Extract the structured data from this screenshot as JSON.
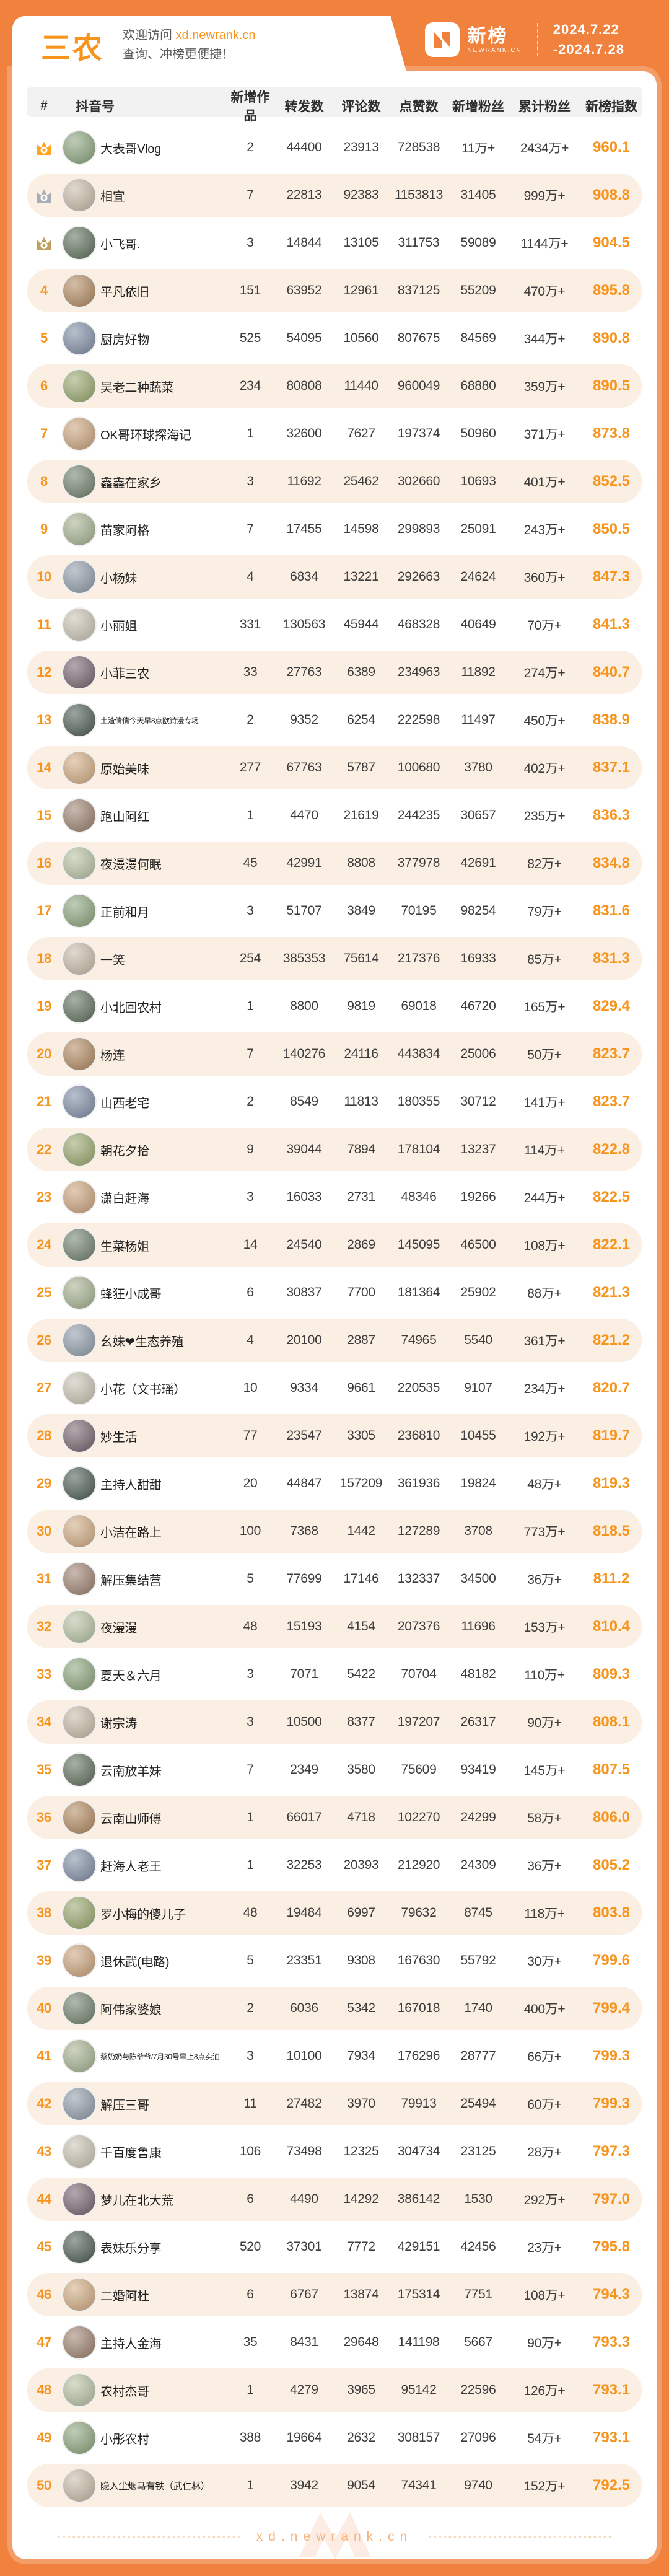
{
  "header": {
    "category": "三农",
    "welcome_prefix": "欢迎访问",
    "welcome_link": "xd.newrank.cn",
    "welcome_line2": "查询、冲榜更便捷！",
    "logo_cn": "新榜",
    "logo_en": "NEWRANK.CN",
    "date_start": "2024.7.22",
    "date_end": "-2024.7.28"
  },
  "colors": {
    "accent_orange": "#F0823E",
    "rank_orange": "#F7941E",
    "row_alt_bg": "#FBEEE2",
    "header_row_bg": "#F2F2F2",
    "crown_gold": "#FFA41B",
    "crown_silver": "#A8AEB5",
    "crown_bronze": "#C0A060"
  },
  "table": {
    "columns": [
      "#",
      "抖音号",
      "新增作品",
      "转发数",
      "评论数",
      "点赞数",
      "新增粉丝",
      "累计粉丝",
      "新榜指数"
    ],
    "rows": [
      {
        "rank": 1,
        "name": "大表哥Vlog",
        "works": "2",
        "shares": "44400",
        "comments": "23913",
        "likes": "728538",
        "new_fans": "11万+",
        "total_fans": "2434万+",
        "index": "960.1"
      },
      {
        "rank": 2,
        "name": "相宜",
        "works": "7",
        "shares": "22813",
        "comments": "92383",
        "likes": "1153813",
        "new_fans": "31405",
        "total_fans": "999万+",
        "index": "908.8"
      },
      {
        "rank": 3,
        "name": "小飞哥.",
        "works": "3",
        "shares": "14844",
        "comments": "13105",
        "likes": "311753",
        "new_fans": "59089",
        "total_fans": "1144万+",
        "index": "904.5"
      },
      {
        "rank": 4,
        "name": "平凡依旧",
        "works": "151",
        "shares": "63952",
        "comments": "12961",
        "likes": "837125",
        "new_fans": "55209",
        "total_fans": "470万+",
        "index": "895.8"
      },
      {
        "rank": 5,
        "name": "厨房好物",
        "works": "525",
        "shares": "54095",
        "comments": "10560",
        "likes": "807675",
        "new_fans": "84569",
        "total_fans": "344万+",
        "index": "890.8"
      },
      {
        "rank": 6,
        "name": "吴老二种蔬菜",
        "works": "234",
        "shares": "80808",
        "comments": "11440",
        "likes": "960049",
        "new_fans": "68880",
        "total_fans": "359万+",
        "index": "890.5"
      },
      {
        "rank": 7,
        "name": "OK哥环球探海记",
        "works": "1",
        "shares": "32600",
        "comments": "7627",
        "likes": "197374",
        "new_fans": "50960",
        "total_fans": "371万+",
        "index": "873.8"
      },
      {
        "rank": 8,
        "name": "鑫鑫在家乡",
        "works": "3",
        "shares": "11692",
        "comments": "25462",
        "likes": "302660",
        "new_fans": "10693",
        "total_fans": "401万+",
        "index": "852.5"
      },
      {
        "rank": 9,
        "name": "苗家阿格",
        "works": "7",
        "shares": "17455",
        "comments": "14598",
        "likes": "299893",
        "new_fans": "25091",
        "total_fans": "243万+",
        "index": "850.5"
      },
      {
        "rank": 10,
        "name": "小杨妹",
        "works": "4",
        "shares": "6834",
        "comments": "13221",
        "likes": "292663",
        "new_fans": "24624",
        "total_fans": "360万+",
        "index": "847.3"
      },
      {
        "rank": 11,
        "name": "小丽姐",
        "works": "331",
        "shares": "130563",
        "comments": "45944",
        "likes": "468328",
        "new_fans": "40649",
        "total_fans": "70万+",
        "index": "841.3"
      },
      {
        "rank": 12,
        "name": "小菲三农",
        "works": "33",
        "shares": "27763",
        "comments": "6389",
        "likes": "234963",
        "new_fans": "11892",
        "total_fans": "274万+",
        "index": "840.7"
      },
      {
        "rank": 13,
        "name": "土渣倩倩今天早8点欧诗漫专场",
        "works": "2",
        "shares": "9352",
        "comments": "6254",
        "likes": "222598",
        "new_fans": "11497",
        "total_fans": "450万+",
        "index": "838.9"
      },
      {
        "rank": 14,
        "name": "原始美味",
        "works": "277",
        "shares": "67763",
        "comments": "5787",
        "likes": "100680",
        "new_fans": "3780",
        "total_fans": "402万+",
        "index": "837.1"
      },
      {
        "rank": 15,
        "name": "跑山阿红",
        "works": "1",
        "shares": "4470",
        "comments": "21619",
        "likes": "244235",
        "new_fans": "30657",
        "total_fans": "235万+",
        "index": "836.3"
      },
      {
        "rank": 16,
        "name": "夜漫漫何眠",
        "works": "45",
        "shares": "42991",
        "comments": "8808",
        "likes": "377978",
        "new_fans": "42691",
        "total_fans": "82万+",
        "index": "834.8"
      },
      {
        "rank": 17,
        "name": "正前和月",
        "works": "3",
        "shares": "51707",
        "comments": "3849",
        "likes": "70195",
        "new_fans": "98254",
        "total_fans": "79万+",
        "index": "831.6"
      },
      {
        "rank": 18,
        "name": "一笑",
        "works": "254",
        "shares": "385353",
        "comments": "75614",
        "likes": "217376",
        "new_fans": "16933",
        "total_fans": "85万+",
        "index": "831.3"
      },
      {
        "rank": 19,
        "name": "小北回农村",
        "works": "1",
        "shares": "8800",
        "comments": "9819",
        "likes": "69018",
        "new_fans": "46720",
        "total_fans": "165万+",
        "index": "829.4"
      },
      {
        "rank": 20,
        "name": "杨连",
        "works": "7",
        "shares": "140276",
        "comments": "24116",
        "likes": "443834",
        "new_fans": "25006",
        "total_fans": "50万+",
        "index": "823.7"
      },
      {
        "rank": 21,
        "name": "山西老宅",
        "works": "2",
        "shares": "8549",
        "comments": "11813",
        "likes": "180355",
        "new_fans": "30712",
        "total_fans": "141万+",
        "index": "823.7"
      },
      {
        "rank": 22,
        "name": "朝花夕拾",
        "works": "9",
        "shares": "39044",
        "comments": "7894",
        "likes": "178104",
        "new_fans": "13237",
        "total_fans": "114万+",
        "index": "822.8"
      },
      {
        "rank": 23,
        "name": "潇白赶海",
        "works": "3",
        "shares": "16033",
        "comments": "2731",
        "likes": "48346",
        "new_fans": "19266",
        "total_fans": "244万+",
        "index": "822.5"
      },
      {
        "rank": 24,
        "name": "生菜杨姐",
        "works": "14",
        "shares": "24540",
        "comments": "2869",
        "likes": "145095",
        "new_fans": "46500",
        "total_fans": "108万+",
        "index": "822.1"
      },
      {
        "rank": 25,
        "name": "蜂狂小成哥",
        "works": "6",
        "shares": "30837",
        "comments": "7700",
        "likes": "181364",
        "new_fans": "25902",
        "total_fans": "88万+",
        "index": "821.3"
      },
      {
        "rank": 26,
        "name": "幺妹❤生态养殖",
        "works": "4",
        "shares": "20100",
        "comments": "2887",
        "likes": "74965",
        "new_fans": "5540",
        "total_fans": "361万+",
        "index": "821.2"
      },
      {
        "rank": 27,
        "name": "小花（文书瑶）",
        "works": "10",
        "shares": "9334",
        "comments": "9661",
        "likes": "220535",
        "new_fans": "9107",
        "total_fans": "234万+",
        "index": "820.7"
      },
      {
        "rank": 28,
        "name": "妙生活",
        "works": "77",
        "shares": "23547",
        "comments": "3305",
        "likes": "236810",
        "new_fans": "10455",
        "total_fans": "192万+",
        "index": "819.7"
      },
      {
        "rank": 29,
        "name": "主持人甜甜",
        "works": "20",
        "shares": "44847",
        "comments": "157209",
        "likes": "361936",
        "new_fans": "19824",
        "total_fans": "48万+",
        "index": "819.3"
      },
      {
        "rank": 30,
        "name": "小洁在路上",
        "works": "100",
        "shares": "7368",
        "comments": "1442",
        "likes": "127289",
        "new_fans": "3708",
        "total_fans": "773万+",
        "index": "818.5"
      },
      {
        "rank": 31,
        "name": "解压集结营",
        "works": "5",
        "shares": "77699",
        "comments": "17146",
        "likes": "132337",
        "new_fans": "34500",
        "total_fans": "36万+",
        "index": "811.2"
      },
      {
        "rank": 32,
        "name": "夜漫漫",
        "works": "48",
        "shares": "15193",
        "comments": "4154",
        "likes": "207376",
        "new_fans": "11696",
        "total_fans": "153万+",
        "index": "810.4"
      },
      {
        "rank": 33,
        "name": "夏天＆六月",
        "works": "3",
        "shares": "7071",
        "comments": "5422",
        "likes": "70704",
        "new_fans": "48182",
        "total_fans": "110万+",
        "index": "809.3"
      },
      {
        "rank": 34,
        "name": "谢宗涛",
        "works": "3",
        "shares": "10500",
        "comments": "8377",
        "likes": "197207",
        "new_fans": "26317",
        "total_fans": "90万+",
        "index": "808.1"
      },
      {
        "rank": 35,
        "name": "云南放羊妹",
        "works": "7",
        "shares": "2349",
        "comments": "3580",
        "likes": "75609",
        "new_fans": "93419",
        "total_fans": "145万+",
        "index": "807.5"
      },
      {
        "rank": 36,
        "name": "云南山师傅",
        "works": "1",
        "shares": "66017",
        "comments": "4718",
        "likes": "102270",
        "new_fans": "24299",
        "total_fans": "58万+",
        "index": "806.0"
      },
      {
        "rank": 37,
        "name": "赶海人老王",
        "works": "1",
        "shares": "32253",
        "comments": "20393",
        "likes": "212920",
        "new_fans": "24309",
        "total_fans": "36万+",
        "index": "805.2"
      },
      {
        "rank": 38,
        "name": "罗小梅的傻儿子",
        "works": "48",
        "shares": "19484",
        "comments": "6997",
        "likes": "79632",
        "new_fans": "8745",
        "total_fans": "118万+",
        "index": "803.8"
      },
      {
        "rank": 39,
        "name": "退休武(电路)",
        "works": "5",
        "shares": "23351",
        "comments": "9308",
        "likes": "167630",
        "new_fans": "55792",
        "total_fans": "30万+",
        "index": "799.6"
      },
      {
        "rank": 40,
        "name": "阿伟家婆娘",
        "works": "2",
        "shares": "6036",
        "comments": "5342",
        "likes": "167018",
        "new_fans": "1740",
        "total_fans": "400万+",
        "index": "799.4"
      },
      {
        "rank": 41,
        "name": "蔡奶奶与陈爷爷/7月30号早上8点卖油",
        "works": "3",
        "shares": "10100",
        "comments": "7934",
        "likes": "176296",
        "new_fans": "28777",
        "total_fans": "66万+",
        "index": "799.3"
      },
      {
        "rank": 42,
        "name": "解压三哥",
        "works": "11",
        "shares": "27482",
        "comments": "3970",
        "likes": "79913",
        "new_fans": "25494",
        "total_fans": "60万+",
        "index": "799.3"
      },
      {
        "rank": 43,
        "name": "千百度鲁康",
        "works": "106",
        "shares": "73498",
        "comments": "12325",
        "likes": "304734",
        "new_fans": "23125",
        "total_fans": "28万+",
        "index": "797.3"
      },
      {
        "rank": 44,
        "name": "梦儿在北大荒",
        "works": "6",
        "shares": "4490",
        "comments": "14292",
        "likes": "386142",
        "new_fans": "1530",
        "total_fans": "292万+",
        "index": "797.0"
      },
      {
        "rank": 45,
        "name": "表妹乐分享",
        "works": "520",
        "shares": "37301",
        "comments": "7772",
        "likes": "429151",
        "new_fans": "42456",
        "total_fans": "23万+",
        "index": "795.8"
      },
      {
        "rank": 46,
        "name": "二婚阿杜",
        "works": "6",
        "shares": "6767",
        "comments": "13874",
        "likes": "175314",
        "new_fans": "7751",
        "total_fans": "108万+",
        "index": "794.3"
      },
      {
        "rank": 47,
        "name": "主持人金海",
        "works": "35",
        "shares": "8431",
        "comments": "29648",
        "likes": "141198",
        "new_fans": "5667",
        "total_fans": "90万+",
        "index": "793.3"
      },
      {
        "rank": 48,
        "name": "农村杰哥",
        "works": "1",
        "shares": "4279",
        "comments": "3965",
        "likes": "95142",
        "new_fans": "22596",
        "total_fans": "126万+",
        "index": "793.1"
      },
      {
        "rank": 49,
        "name": "小彤农村",
        "works": "388",
        "shares": "19664",
        "comments": "2632",
        "likes": "308157",
        "new_fans": "27096",
        "total_fans": "54万+",
        "index": "793.1"
      },
      {
        "rank": 50,
        "name": "隐入尘烟马有铁（武仁林）",
        "works": "1",
        "shares": "3942",
        "comments": "9054",
        "likes": "74341",
        "new_fans": "9740",
        "total_fans": "152万+",
        "index": "792.5"
      }
    ]
  },
  "footer": {
    "site": "xd.newrank.cn"
  }
}
